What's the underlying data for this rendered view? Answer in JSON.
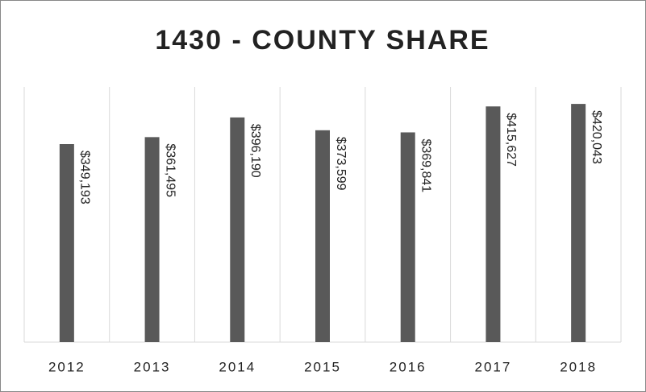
{
  "chart_data": {
    "type": "bar",
    "title": "1430 - COUNTY SHARE",
    "categories": [
      "2012",
      "2013",
      "2014",
      "2015",
      "2016",
      "2017",
      "2018"
    ],
    "values": [
      349193,
      361495,
      396190,
      373599,
      369841,
      415627,
      420043
    ],
    "value_labels": [
      "$349,193",
      "$361,495",
      "$396,190",
      "$373,599",
      "$369,841",
      "$415,627",
      "$420,043"
    ],
    "color": "#595959",
    "ylim": [
      0,
      450000
    ]
  }
}
